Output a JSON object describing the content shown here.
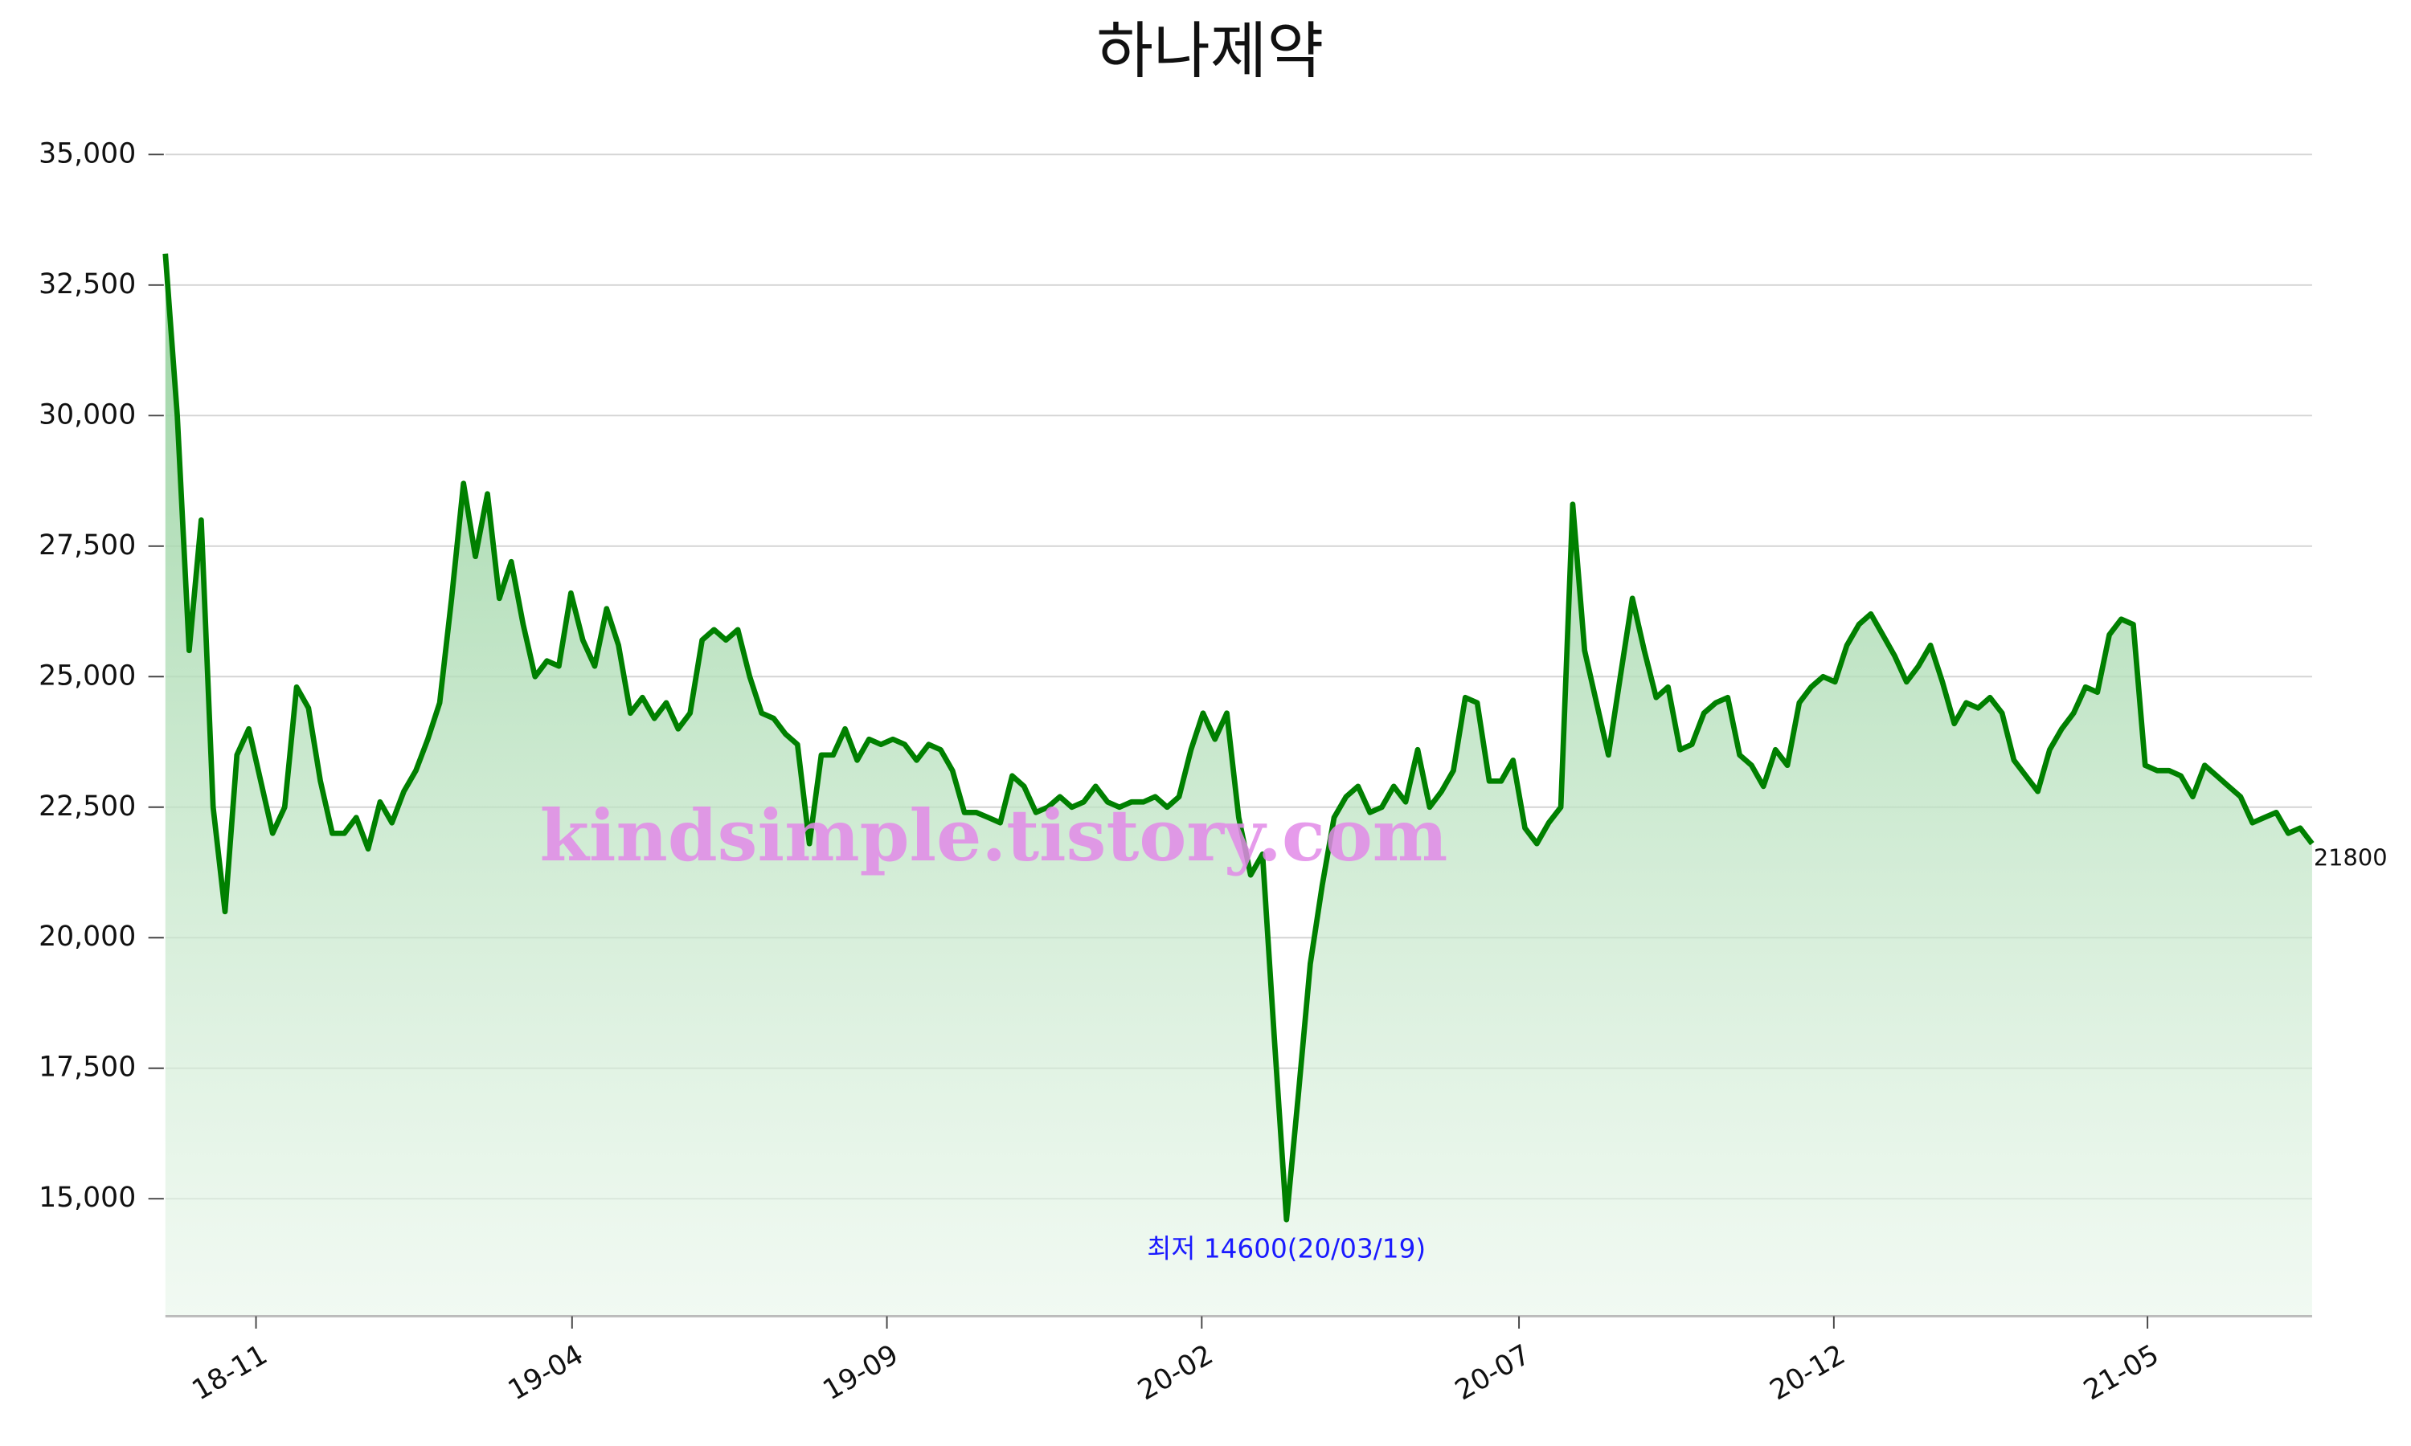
{
  "chart_data": {
    "type": "line",
    "title": "하나제약",
    "watermark": "kindsimple.tistory.com",
    "annotations": [
      "최저 14600(20/03/19)",
      "21800"
    ],
    "color": "#008000",
    "grid": true,
    "ylim": [
      12750,
      35000
    ],
    "yticks": [
      {
        "value": 15000,
        "label": "15,000"
      },
      {
        "value": 17500,
        "label": "17,500"
      },
      {
        "value": 20000,
        "label": "20,000"
      },
      {
        "value": 22500,
        "label": "22,500"
      },
      {
        "value": 25000,
        "label": "25,000"
      },
      {
        "value": 27500,
        "label": "27,500"
      },
      {
        "value": 30000,
        "label": "30,000"
      },
      {
        "value": 32500,
        "label": "32,500"
      },
      {
        "value": 35000,
        "label": "35,000"
      }
    ],
    "xticks": [
      {
        "value": 7.6,
        "label": "18-11"
      },
      {
        "value": 34.1,
        "label": "19-04"
      },
      {
        "value": 60.5,
        "label": "19-09"
      },
      {
        "value": 86.9,
        "label": "20-02"
      },
      {
        "value": 113.5,
        "label": "20-07"
      },
      {
        "value": 139.9,
        "label": "20-12"
      },
      {
        "value": 166.2,
        "label": "21-05"
      }
    ],
    "categories": [
      null,
      null,
      null,
      null,
      null,
      null,
      null,
      null,
      null,
      null,
      null,
      null,
      null,
      null,
      null,
      null,
      null,
      null,
      null,
      null,
      null,
      null,
      null,
      null,
      null,
      null,
      null,
      null,
      null,
      null,
      null,
      null,
      null,
      null,
      null,
      null,
      null,
      null,
      null,
      null,
      null,
      null,
      null,
      null,
      null,
      null,
      null,
      null,
      null,
      null,
      null,
      null,
      null,
      null,
      null,
      null,
      null,
      null,
      null,
      null,
      null,
      null,
      null,
      null,
      null,
      null,
      null,
      null,
      null,
      null,
      null,
      null,
      null,
      null,
      null,
      null,
      null,
      null,
      null,
      null,
      null,
      null,
      null,
      null,
      null,
      null,
      null,
      null,
      null,
      null,
      null,
      null,
      null,
      null,
      null,
      null,
      null,
      null,
      null,
      null,
      null,
      null,
      null,
      null,
      null,
      null,
      null,
      null,
      null,
      null,
      null,
      null,
      null,
      null,
      null,
      null,
      null,
      null,
      null,
      null,
      null,
      null,
      null,
      null,
      null,
      null,
      null,
      null,
      null,
      null,
      null,
      null,
      null,
      null,
      null,
      null,
      null,
      null,
      null,
      null,
      null,
      null,
      null,
      null,
      null,
      null,
      null,
      null,
      null,
      null,
      null,
      null,
      null,
      null,
      null,
      null,
      null,
      null,
      null,
      null,
      null,
      null,
      null,
      null,
      null,
      null,
      null,
      null,
      null,
      null,
      null,
      null,
      null,
      null,
      null,
      null,
      null,
      null,
      null,
      null,
      null
    ],
    "values": [
      33100,
      30000,
      25500,
      28000,
      22500,
      20500,
      23500,
      24000,
      23000,
      22000,
      22500,
      24800,
      24400,
      23000,
      22000,
      22000,
      22300,
      21700,
      22600,
      22200,
      22800,
      23200,
      23800,
      24500,
      26500,
      28700,
      27300,
      28500,
      26500,
      27200,
      26000,
      25000,
      25300,
      25200,
      26600,
      25700,
      25200,
      26300,
      25600,
      24300,
      24600,
      24200,
      24500,
      24000,
      24300,
      25700,
      25900,
      25700,
      25900,
      25000,
      24300,
      24200,
      23900,
      23700,
      21800,
      23500,
      23500,
      24000,
      23400,
      23800,
      23700,
      23800,
      23700,
      23400,
      23700,
      23600,
      23200,
      22400,
      22400,
      22300,
      22200,
      23100,
      22900,
      22400,
      22500,
      22700,
      22500,
      22600,
      22900,
      22600,
      22500,
      22600,
      22600,
      22700,
      22500,
      22700,
      23600,
      24300,
      23800,
      24300,
      22300,
      21200,
      21600,
      18000,
      14600,
      17000,
      19500,
      21000,
      22300,
      22700,
      22900,
      22400,
      22500,
      22900,
      22600,
      23600,
      22500,
      22800,
      23200,
      24600,
      24500,
      23000,
      23000,
      23400,
      22100,
      21800,
      22200,
      22500,
      28300,
      25500,
      24500,
      23500,
      25000,
      26500,
      25500,
      24600,
      24800,
      23600,
      23700,
      24300,
      24500,
      24600,
      23500,
      23300,
      22900,
      23600,
      23300,
      24500,
      24800,
      25000,
      24900,
      25600,
      26000,
      26200,
      25800,
      25400,
      24900,
      25200,
      25600,
      24900,
      24100,
      24500,
      24400,
      24600,
      24300,
      23400,
      23100,
      22800,
      23600,
      24000,
      24300,
      24800,
      24700,
      25800,
      26100,
      26000,
      23300,
      23200,
      23200,
      23100,
      22700,
      23300,
      23100,
      22900,
      22700,
      22200,
      22300,
      22400,
      22000,
      22100,
      21800
    ]
  }
}
